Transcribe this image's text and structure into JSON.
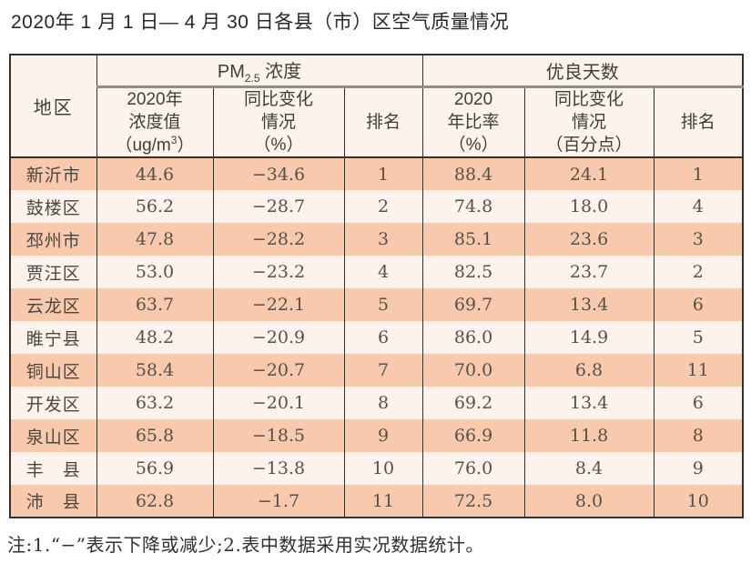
{
  "title": "2020年 1 月 1 日— 4 月 30 日各县（市）区空气质量情况",
  "table": {
    "columns": {
      "region": "地区",
      "pm_group": {
        "base": "PM",
        "sub": "2.5",
        "rest": " 浓度"
      },
      "pm_value": {
        "l1": "2020年",
        "l2": "浓度值",
        "unit_pre": "（ug/m",
        "unit_sup": "3",
        "unit_post": "）"
      },
      "pm_change": {
        "l1": "同比变化",
        "l2": "情况",
        "l3": "（%）"
      },
      "pm_rank": "排名",
      "good_group": "优良天数",
      "good_rate": {
        "l1": "2020",
        "l2": "年比率",
        "l3": "（%）"
      },
      "good_change": {
        "l1": "同比变化",
        "l2": "情况",
        "l3": "（百分点）"
      },
      "good_rank": "排名"
    },
    "rows": [
      {
        "region": "新沂市",
        "pm_value": "44.6",
        "pm_change": "−34.6",
        "pm_rank": "1",
        "good_rate": "88.4",
        "good_change": "24.1",
        "good_rank": "1"
      },
      {
        "region": "鼓楼区",
        "pm_value": "56.2",
        "pm_change": "−28.7",
        "pm_rank": "2",
        "good_rate": "74.8",
        "good_change": "18.0",
        "good_rank": "4"
      },
      {
        "region": "邳州市",
        "pm_value": "47.8",
        "pm_change": "−28.2",
        "pm_rank": "3",
        "good_rate": "85.1",
        "good_change": "23.6",
        "good_rank": "3"
      },
      {
        "region": "贾汪区",
        "pm_value": "53.0",
        "pm_change": "−23.2",
        "pm_rank": "4",
        "good_rate": "82.5",
        "good_change": "23.7",
        "good_rank": "2"
      },
      {
        "region": "云龙区",
        "pm_value": "63.7",
        "pm_change": "−22.1",
        "pm_rank": "5",
        "good_rate": "69.7",
        "good_change": "13.4",
        "good_rank": "6"
      },
      {
        "region": "睢宁县",
        "pm_value": "48.2",
        "pm_change": "−20.9",
        "pm_rank": "6",
        "good_rate": "86.0",
        "good_change": "14.9",
        "good_rank": "5"
      },
      {
        "region": "铜山区",
        "pm_value": "58.4",
        "pm_change": "−20.7",
        "pm_rank": "7",
        "good_rate": "70.0",
        "good_change": "6.8",
        "good_rank": "11"
      },
      {
        "region": "开发区",
        "pm_value": "63.2",
        "pm_change": "−20.1",
        "pm_rank": "8",
        "good_rate": "69.2",
        "good_change": "13.4",
        "good_rank": "6"
      },
      {
        "region": "泉山区",
        "pm_value": "65.8",
        "pm_change": "−18.5",
        "pm_rank": "9",
        "good_rate": "66.9",
        "good_change": "11.8",
        "good_rank": "8"
      },
      {
        "region": "丰　县",
        "pm_value": "56.9",
        "pm_change": "−13.8",
        "pm_rank": "10",
        "good_rate": "76.0",
        "good_change": "8.4",
        "good_rank": "9"
      },
      {
        "region": "沛　县",
        "pm_value": "62.8",
        "pm_change": "−1.7",
        "pm_rank": "11",
        "good_rate": "72.5",
        "good_change": "8.0",
        "good_rank": "10"
      }
    ]
  },
  "footnote": "注:1.“−”表示下降或减少;2.表中数据采用实况数据统计。",
  "colors": {
    "row_odd": "#f8c9ad",
    "row_even": "#fdf3ed",
    "header_bg": "#fcf4ec",
    "border_dark": "#35322e",
    "group_divider": "#918d89"
  }
}
